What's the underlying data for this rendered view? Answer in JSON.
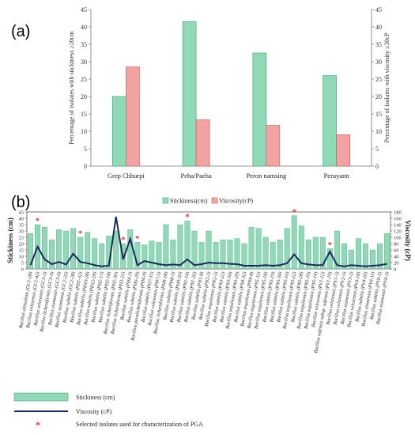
{
  "panels": {
    "a": "(a)",
    "b": "(b)"
  },
  "colors": {
    "stickiness": "#8fd9b6",
    "stickiness_border": "#4aa981",
    "viscosity": "#f3a2a2",
    "viscosity_border": "#c76767",
    "line": "#1a2a5e",
    "star": "#e33"
  },
  "chart_data": [
    {
      "type": "bar",
      "categories": [
        "Grep Chhurpi",
        "Peha/Paeha",
        "Peron namsing",
        "Peruyann"
      ],
      "series": [
        {
          "name": "Stickiness(cm)",
          "values": [
            20,
            41.5,
            32.5,
            26
          ]
        },
        {
          "name": "Viscosity(cP)",
          "values": [
            28.5,
            13.3,
            11.7,
            9
          ]
        }
      ],
      "ylabel": "Percentage of isolates with stickiness ≥20cm",
      "y2label": "Percentage of isolates with viscosity ≥30cP",
      "ylim": [
        0,
        45
      ],
      "y2lim": [
        0,
        45
      ],
      "yticks": [
        0,
        5,
        10,
        15,
        20,
        25,
        30,
        35,
        40,
        45
      ],
      "legend": "bottom",
      "legend_entries": [
        "Stickiness(cm)",
        "Viscosity(cP)"
      ]
    },
    {
      "type": "bar+line",
      "categories": [
        "Bacillus altitudinis (GC1-28)",
        "Bacillus velezensis (GC1-42)",
        "Bacillus velezensis (GC3-3)",
        "Bacillus licheniformis (GC3-4)",
        "Bacillus siamensis (GC3-6)",
        "Bacillus siamensis (GC2-22)",
        "Bacillus subtilis (GC2-28)",
        "Bacillus subtilis (PH1-32)",
        "Bacillus subtilis (PH10-28)",
        "Bacillus subtilis (PH12-29)",
        "Bacillus subtilis (PH2-13)",
        "Bacillus subtilis (PH2-18)",
        "Bacillus licheniformis (PH2-30)",
        "Bacillus licheniformis (PH3-21)",
        "Bacillus subtilis (PH4-3)",
        "Bacillus subtilis (PH6-29)",
        "Bacillus paralicheniformis (PH6-9)",
        "Bacillus subtilis (PH7-11)",
        "Bacillus velezensis (PH7-5)",
        "Bacillus licheniformis (PH8-18)",
        "Bacillus subtilis (PH8-3)",
        "Bacillus subtilis (PH9-20)",
        "Bacillus subtilis (PN1-14)",
        "Bacillus subtilis (PN1-26)",
        "Bacillus subtilis (PN1-8)",
        "Bacillus subtilis (PN2-3)",
        "Bacillus tequilensis (PN2-5)",
        "Bacillus subtilis (PN3-22)",
        "Bacillus subtilis (PN3-34)",
        "Bacillus tequilensis (PN3-29)",
        "Bacillus subtilis (PN4-32)",
        "Bacillus tequilensis (PN4-8)",
        "Bacillus tequilensis (PN5-11)",
        "Bacillus tequilensis (PN5-18)",
        "Bacillus subtilis (PN5-19)",
        "Bacillus subtilis (PN5-34)",
        "Bacillus subtilis (PN5-10)",
        "Bacillus tequilensis (PN5-22)",
        "Bacillus subtilis (PN5-28)",
        "Bacillus tequilensis (PN5-35)",
        "Bacillus tequilensis (PN5-14)",
        "Bacillus velezensis (PV1-12)",
        "Bacillus safensis subsp. safensis (PV1-19)",
        "Bacillus velezensis (PV1-3)",
        "Bacillus velezensis (PV2-5)",
        "Bacillus siamensis (PV3-2)",
        "Bacillus velezensis (PV4-18)",
        "Bacillus subtilis (PV4-20)",
        "Bacillus siamensis (PV6-11)",
        "Bacillus subtilis (PV6-5)",
        "Bacillus siamensis (PV6-3)"
      ],
      "series": [
        {
          "name": "Stickiness (cm)",
          "type": "bar",
          "axis": "left",
          "values": [
            28,
            35,
            33,
            23,
            31,
            30,
            32,
            25,
            29,
            24,
            20,
            26,
            30,
            20,
            31,
            21,
            19,
            22,
            21,
            35,
            23,
            35,
            38,
            30,
            21,
            30,
            21,
            23,
            23,
            24,
            20,
            33,
            32,
            25,
            21,
            23,
            32,
            42,
            34,
            23,
            25,
            25,
            16,
            30,
            20,
            15,
            24,
            20,
            15,
            20,
            28
          ]
        },
        {
          "name": "Viscosity (cP)",
          "type": "line",
          "axis": "right",
          "values": [
            12,
            70,
            30,
            15,
            22,
            14,
            48,
            22,
            18,
            12,
            8,
            10,
            165,
            30,
            95,
            12,
            25,
            20,
            15,
            12,
            14,
            12,
            30,
            12,
            15,
            20,
            18,
            18,
            16,
            15,
            10,
            10,
            10,
            12,
            10,
            12,
            18,
            46,
            18,
            14,
            12,
            12,
            55,
            12,
            8,
            12,
            10,
            8,
            10,
            12,
            16
          ]
        }
      ],
      "ylabel": "Stickiness (cm)",
      "y2label": "Viscosity (cP)",
      "ylim": [
        0,
        45
      ],
      "y2lim": [
        0,
        180
      ],
      "yticks": [
        0,
        5,
        10,
        15,
        20,
        25,
        30,
        35,
        40,
        45
      ],
      "y2ticks": [
        0,
        20,
        40,
        60,
        80,
        100,
        120,
        140,
        160,
        180
      ],
      "starred": [
        1,
        7,
        13,
        15,
        22,
        37,
        42
      ],
      "top_legend": [
        "Stickiness(cm)",
        "Viscosity(cP)"
      ],
      "bottom_legend": [
        "Stickiness (cm)",
        "Viscosity (cP)",
        "Selected isolates used for characterization of PGA"
      ]
    }
  ]
}
